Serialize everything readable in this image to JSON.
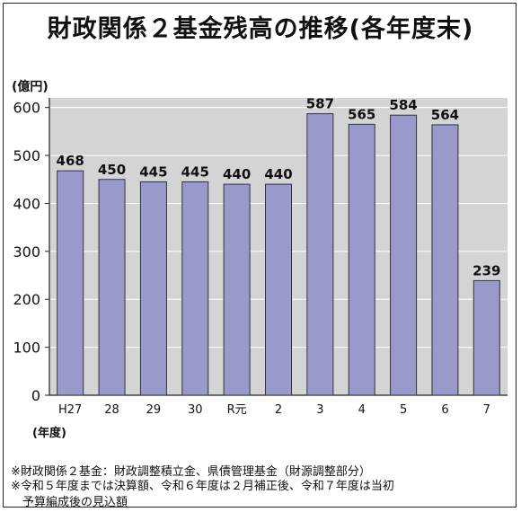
{
  "chart_data": {
    "type": "bar",
    "title": "財政関係２基金残高の推移(各年度末)",
    "ylabel": "(億円)",
    "xlabel": "(年度)",
    "categories": [
      "H27",
      "28",
      "29",
      "30",
      "R元",
      "2",
      "3",
      "4",
      "5",
      "6",
      "7"
    ],
    "values": [
      468,
      450,
      445,
      445,
      440,
      440,
      587,
      565,
      584,
      564,
      239
    ],
    "ylim": [
      0,
      620
    ],
    "yticks": [
      0,
      100,
      200,
      300,
      400,
      500,
      600
    ],
    "bar_color": "#9999cc",
    "plot_background": "#d4d4d4",
    "grid": true,
    "data_labels": true
  },
  "notes": [
    "※財政関係２基金：財政調整積立金、県債管理基金（財源調整部分）",
    "※令和５年度までは決算額、令和６年度は２月補正後、令和７年度は当初",
    "予算編成後の見込額"
  ]
}
